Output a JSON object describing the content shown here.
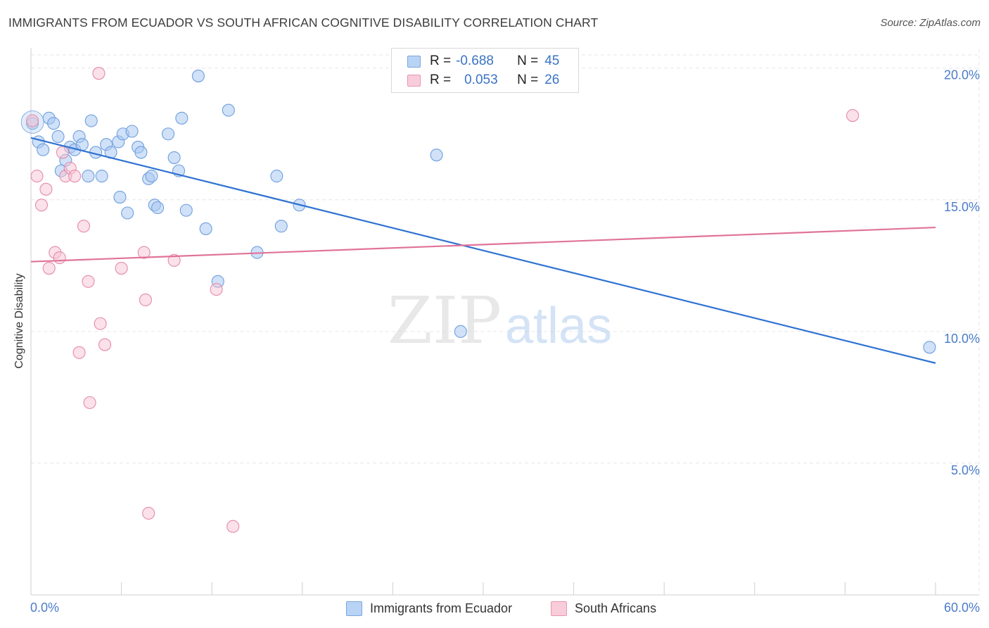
{
  "title": "IMMIGRANTS FROM ECUADOR VS SOUTH AFRICAN COGNITIVE DISABILITY CORRELATION CHART",
  "source": "Source: ZipAtlas.com",
  "watermark": {
    "zip": "ZIP",
    "atlas": "atlas"
  },
  "stats": [
    {
      "r_label": "R =",
      "r_value": "-0.688",
      "n_label": "N =",
      "n_value": "45"
    },
    {
      "r_label": "R =",
      "r_value": "0.053",
      "n_label": "N =",
      "n_value": "26"
    }
  ],
  "legend": {
    "ecuador": "Immigrants from Ecuador",
    "south_african": "South Africans"
  },
  "colors": {
    "ecuador_fill": "#a9c8f2",
    "ecuador_stroke": "#6f9fdc",
    "ecuador_line": "#2f72d2",
    "sa_fill": "#f8c4d4",
    "sa_stroke": "#e58aa8",
    "sa_line": "#e0739a",
    "axis_text": "#4a7cc9",
    "grid": "#e6e6e6"
  },
  "chart_data": {
    "type": "scatter",
    "title": "IMMIGRANTS FROM ECUADOR VS SOUTH AFRICAN COGNITIVE DISABILITY CORRELATION CHART",
    "xlabel": "",
    "ylabel": "Cognitive Disability",
    "xlim": [
      0,
      60
    ],
    "ylim": [
      0,
      20.5
    ],
    "x_tick_labels": [
      "0.0%",
      "60.0%"
    ],
    "y_ticks": [
      5,
      10,
      15,
      20
    ],
    "y_tick_labels": [
      "5.0%",
      "10.0%",
      "15.0%",
      "20.0%"
    ],
    "grid": true,
    "legend_position": "bottom-center",
    "series": [
      {
        "name": "Immigrants from Ecuador",
        "color": "#a9c8f2",
        "r": -0.688,
        "n": 45,
        "trend": {
          "x": [
            0,
            60
          ],
          "y": [
            17.35,
            8.8
          ]
        },
        "points": [
          [
            0.1,
            17.9
          ],
          [
            0.5,
            17.2
          ],
          [
            0.8,
            16.9
          ],
          [
            1.2,
            18.1
          ],
          [
            1.5,
            17.9
          ],
          [
            1.8,
            17.4
          ],
          [
            2.0,
            16.1
          ],
          [
            2.3,
            16.5
          ],
          [
            2.6,
            17.0
          ],
          [
            2.9,
            16.9
          ],
          [
            3.2,
            17.4
          ],
          [
            3.4,
            17.1
          ],
          [
            3.8,
            15.9
          ],
          [
            4.0,
            18.0
          ],
          [
            4.3,
            16.8
          ],
          [
            4.7,
            15.9
          ],
          [
            5.0,
            17.1
          ],
          [
            5.3,
            16.8
          ],
          [
            5.8,
            17.2
          ],
          [
            5.9,
            15.1
          ],
          [
            6.1,
            17.5
          ],
          [
            6.4,
            14.5
          ],
          [
            6.7,
            17.6
          ],
          [
            7.1,
            17.0
          ],
          [
            7.3,
            16.8
          ],
          [
            7.8,
            15.8
          ],
          [
            8.0,
            15.9
          ],
          [
            8.2,
            14.8
          ],
          [
            8.4,
            14.7
          ],
          [
            9.1,
            17.5
          ],
          [
            9.5,
            16.6
          ],
          [
            9.8,
            16.1
          ],
          [
            10.0,
            18.1
          ],
          [
            10.3,
            14.6
          ],
          [
            11.1,
            19.7
          ],
          [
            11.6,
            13.9
          ],
          [
            12.4,
            11.9
          ],
          [
            13.1,
            18.4
          ],
          [
            15.0,
            13.0
          ],
          [
            16.3,
            15.9
          ],
          [
            16.6,
            14.0
          ],
          [
            17.8,
            14.8
          ],
          [
            26.9,
            16.7
          ],
          [
            28.5,
            10.0
          ],
          [
            59.6,
            9.4
          ]
        ]
      },
      {
        "name": "South Africans",
        "color": "#f8c4d4",
        "r": 0.053,
        "n": 26,
        "trend": {
          "x": [
            0,
            60
          ],
          "y": [
            12.65,
            13.95
          ]
        },
        "points": [
          [
            0.1,
            18.0
          ],
          [
            0.4,
            15.9
          ],
          [
            0.7,
            14.8
          ],
          [
            1.0,
            15.4
          ],
          [
            1.2,
            12.4
          ],
          [
            1.6,
            13.0
          ],
          [
            1.9,
            12.8
          ],
          [
            2.1,
            16.8
          ],
          [
            2.3,
            15.9
          ],
          [
            2.6,
            16.2
          ],
          [
            2.9,
            15.9
          ],
          [
            3.2,
            9.2
          ],
          [
            3.5,
            14.0
          ],
          [
            3.8,
            11.9
          ],
          [
            3.9,
            7.3
          ],
          [
            4.5,
            19.8
          ],
          [
            4.6,
            10.3
          ],
          [
            4.9,
            9.5
          ],
          [
            6.0,
            12.4
          ],
          [
            7.5,
            13.0
          ],
          [
            7.6,
            11.2
          ],
          [
            7.8,
            3.1
          ],
          [
            9.5,
            12.7
          ],
          [
            12.3,
            11.6
          ],
          [
            13.4,
            2.6
          ],
          [
            54.5,
            18.2
          ]
        ]
      }
    ]
  }
}
